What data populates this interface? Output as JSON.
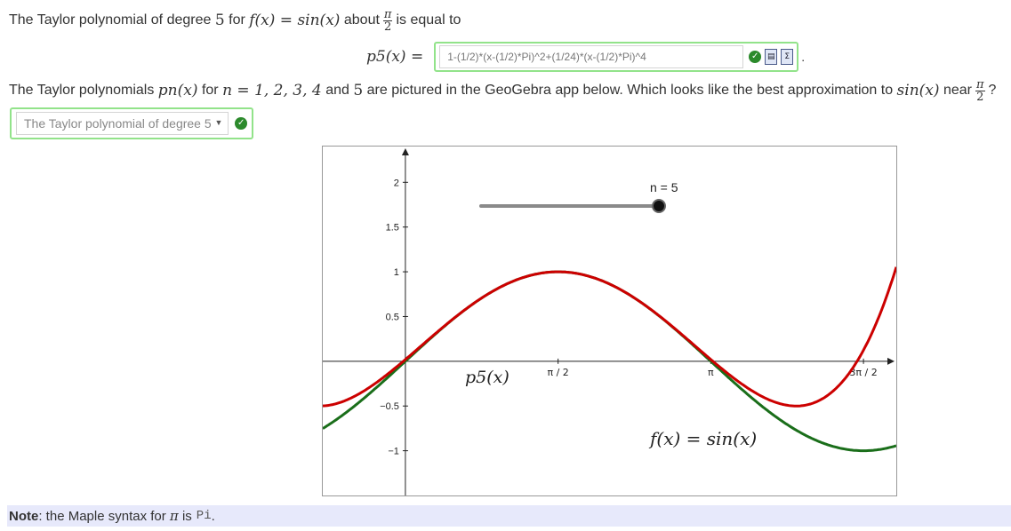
{
  "intro": {
    "prefix": "The Taylor polynomial of degree",
    "degree": "5",
    "for_text": "for",
    "function": "f(x) = sin(x)",
    "about_text": "about",
    "frac_num": "π",
    "frac_den": "2",
    "suffix": "is equal to"
  },
  "answer": {
    "label": "p5(x) =",
    "value": "1-(1/2)*(x-(1/2)*Pi)^2+(1/24)*(x-(1/2)*Pi)^4",
    "status_icon": "check-icon",
    "extra_icons": [
      "preview-icon",
      "maple-icon"
    ],
    "trailing": "."
  },
  "question": {
    "prefix": "The Taylor polynomials",
    "pn": "pn(x)",
    "for_text": "for",
    "n_values": "n = 1, 2, 3, 4",
    "and_text": "and",
    "five": "5",
    "middle": "are pictured in the GeoGebra app below. Which looks like the best approximation to",
    "sin": "sin(x)",
    "near": "near",
    "frac_num": "π",
    "frac_den": "2",
    "end": "?"
  },
  "dropdown": {
    "selected": "The Taylor polynomial of degree 5",
    "status_icon": "check-icon"
  },
  "graph": {
    "slider_label": "n = 5",
    "slider_value": 5,
    "p5_label": "p5(x)",
    "f_label": "f(x) = sin(x)",
    "y_ticks": [
      "2",
      "1.5",
      "1",
      "0.5",
      "−0.5",
      "−1"
    ],
    "x_ticks": [
      "π / 2",
      "π",
      "3π / 2"
    ],
    "colors": {
      "sin": "#1a6e1a",
      "taylor": "#cc0000",
      "slider": "#8a8a8a"
    }
  },
  "chart_data": {
    "type": "line",
    "x_range": [
      -0.85,
      5.05
    ],
    "y_range": [
      -1.5,
      2.4
    ],
    "series": [
      {
        "name": "f(x) = sin(x)",
        "function": "sin(x)"
      },
      {
        "name": "p5(x)",
        "function": "1-(1/2)*(x-(1/2)*Pi)^2+(1/24)*(x-(1/2)*Pi)^4"
      }
    ],
    "grid": false
  },
  "note": {
    "bold": "Note",
    "text": ": the Maple syntax for",
    "pi": "π",
    "is": "is",
    "code": "Pi",
    "end": "."
  }
}
